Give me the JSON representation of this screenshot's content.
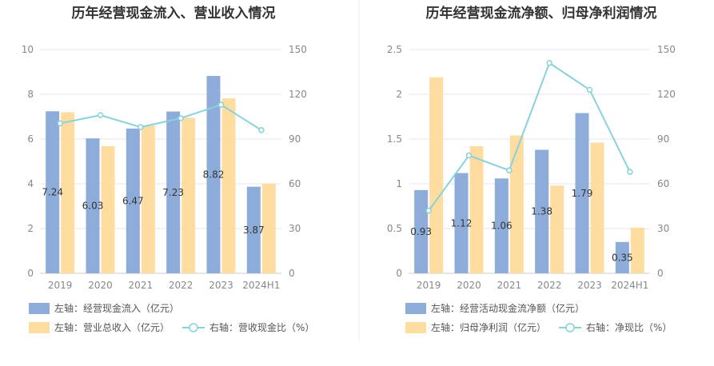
{
  "colors": {
    "bar_primary": "#8eacd9",
    "bar_secondary": "#ffdda0",
    "line": "#88d2da",
    "grid": "#e4e6f0",
    "divider": "#eeeeee"
  },
  "chart_data": [
    {
      "type": "bar",
      "title": "历年经营现金流入、营业收入情况",
      "categories": [
        "2019",
        "2020",
        "2021",
        "2022",
        "2023",
        "2024H1"
      ],
      "y_left": {
        "min": 0,
        "max": 10,
        "ticks": [
          "0",
          "2",
          "4",
          "6",
          "8",
          "10"
        ]
      },
      "y_right": {
        "min": 0,
        "max": 150,
        "ticks": [
          "0",
          "30",
          "60",
          "90",
          "120",
          "150"
        ]
      },
      "series": [
        {
          "name": "左轴：经营现金流入（亿元）",
          "type": "bar",
          "axis": "left",
          "values": [
            7.24,
            6.03,
            6.47,
            7.23,
            8.82,
            3.87
          ],
          "labels": [
            "7.24",
            "6.03",
            "6.47",
            "7.23",
            "8.82",
            "3.87"
          ]
        },
        {
          "name": "左轴：营业总收入（亿元）",
          "type": "bar",
          "axis": "left",
          "values": [
            7.2,
            5.68,
            6.6,
            6.95,
            7.82,
            4.02
          ]
        },
        {
          "name": "右轴：营收现金比（%）",
          "type": "line",
          "axis": "right",
          "values": [
            100.5,
            106,
            98,
            104,
            113,
            96
          ]
        }
      ],
      "legend_position": "bottom-left",
      "grid": true
    },
    {
      "type": "bar",
      "title": "历年经营现金流净额、归母净利润情况",
      "categories": [
        "2019",
        "2020",
        "2021",
        "2022",
        "2023",
        "2024H1"
      ],
      "y_left": {
        "min": 0,
        "max": 2.5,
        "ticks": [
          "0",
          "0.5",
          "1",
          "1.5",
          "2",
          "2.5"
        ]
      },
      "y_right": {
        "min": 0,
        "max": 150,
        "ticks": [
          "0",
          "30",
          "60",
          "90",
          "120",
          "150"
        ]
      },
      "series": [
        {
          "name": "左轴：经营活动现金流净额（亿元）",
          "type": "bar",
          "axis": "left",
          "values": [
            0.93,
            1.12,
            1.06,
            1.38,
            1.79,
            0.35
          ],
          "labels": [
            "0.93",
            "1.12",
            "1.06",
            "1.38",
            "1.79",
            "0.35"
          ]
        },
        {
          "name": "左轴：归母净利润（亿元）",
          "type": "bar",
          "axis": "left",
          "values": [
            2.19,
            1.42,
            1.54,
            0.98,
            1.46,
            0.51
          ]
        },
        {
          "name": "右轴：净现比（%）",
          "type": "line",
          "axis": "right",
          "values": [
            42,
            79,
            69,
            141,
            123,
            68
          ]
        }
      ],
      "legend_position": "bottom-left",
      "grid": true
    }
  ]
}
